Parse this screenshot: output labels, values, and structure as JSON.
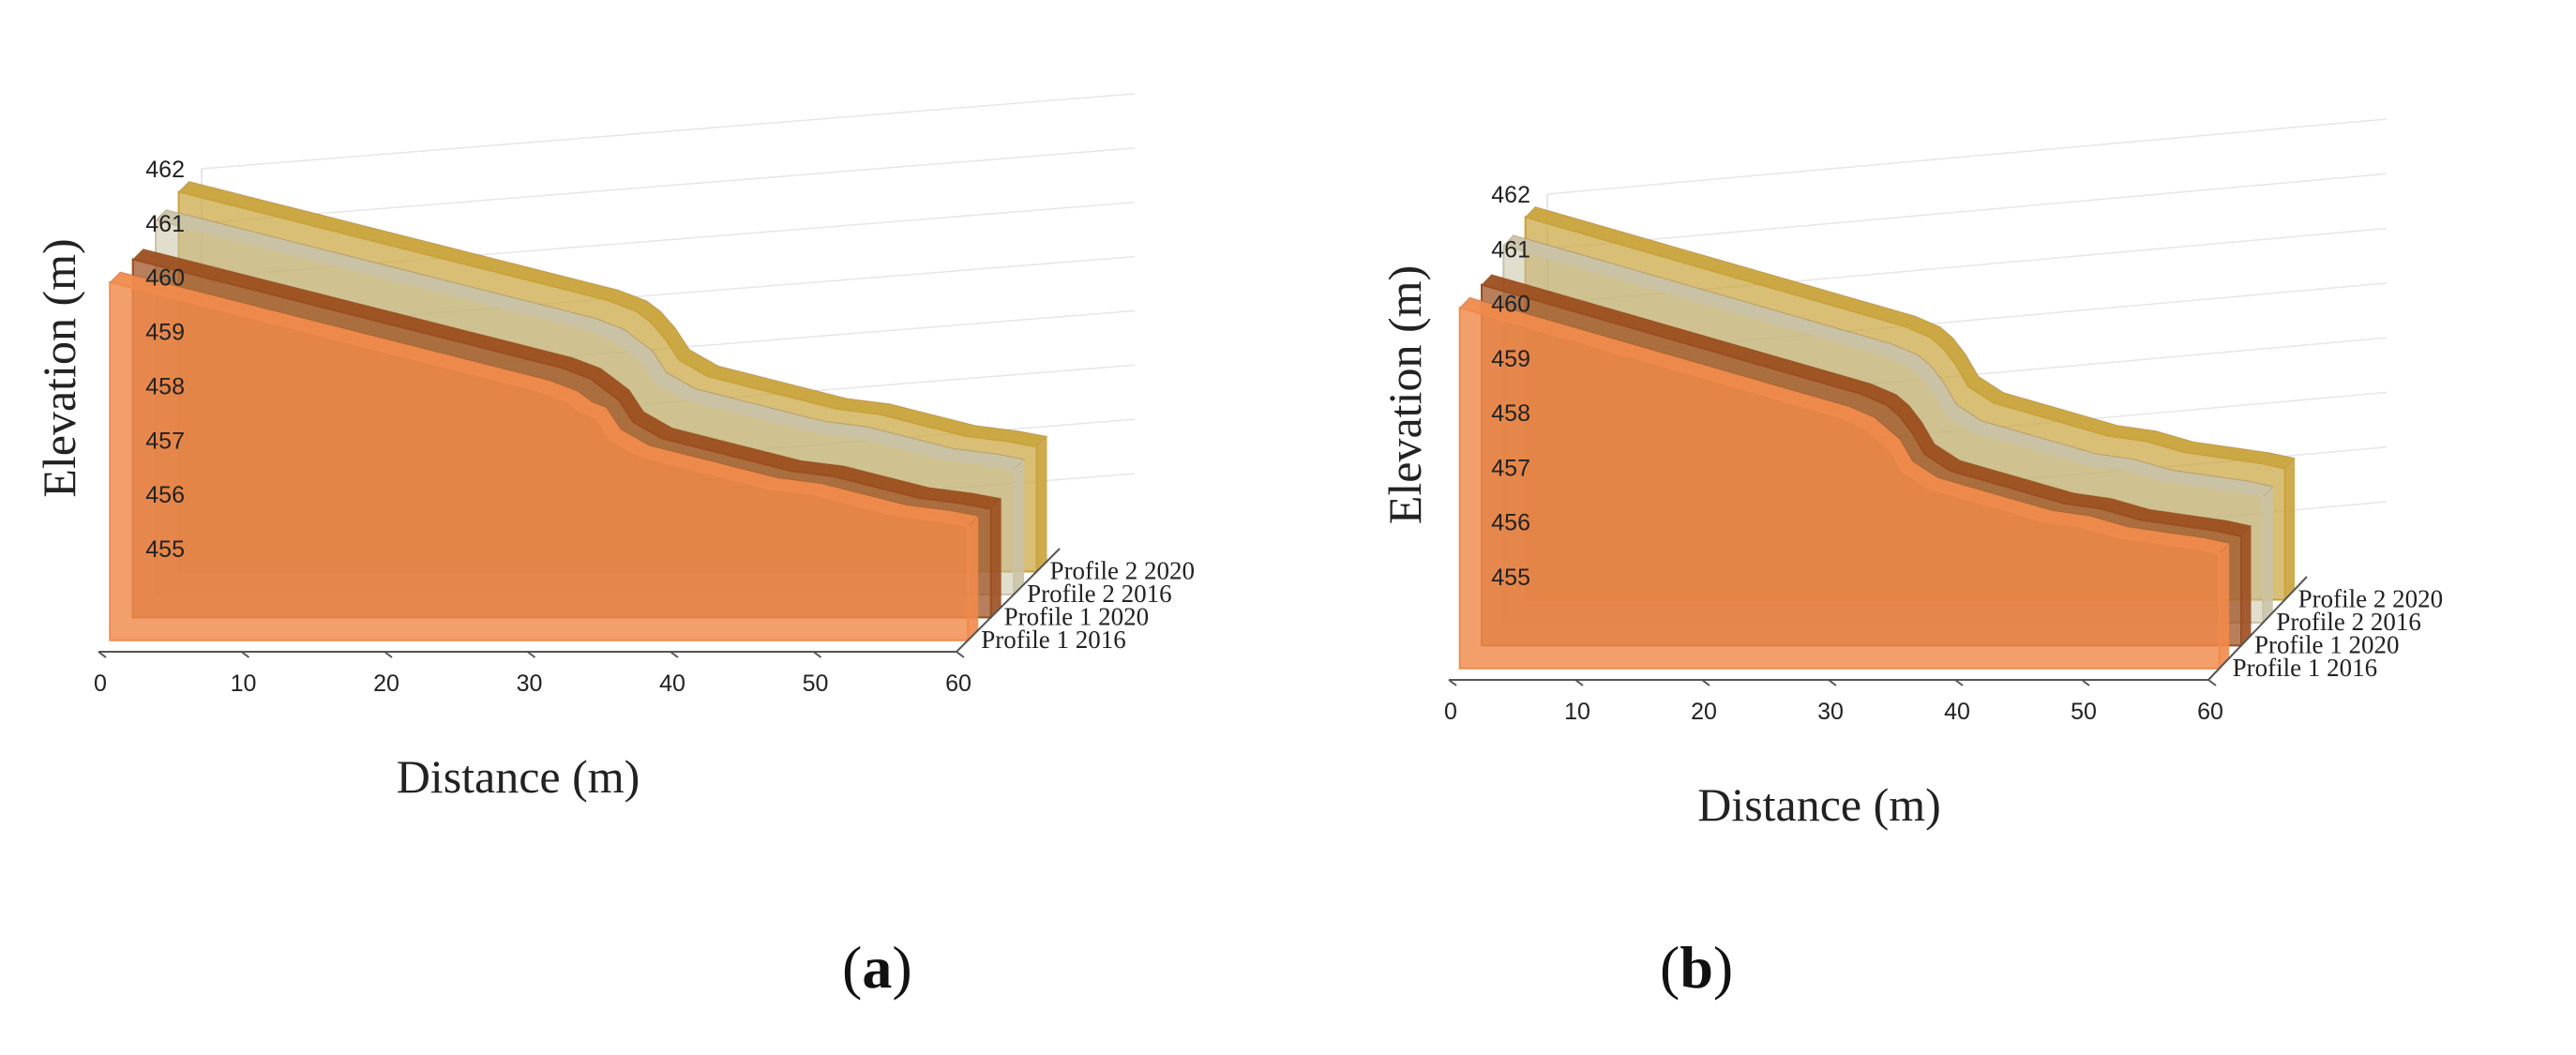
{
  "colors": {
    "profile_1_2016": "#F08A4B",
    "profile_1_2020": "#9C4E1F",
    "profile_2_2016": "#C9C2A6",
    "profile_2_2020": "#C9A33A",
    "grid": "#e6e6e6",
    "axis": "#555555"
  },
  "panels": [
    {
      "label_open": "(",
      "label_letter": "a",
      "label_close": ")"
    },
    {
      "label_open": "(",
      "label_letter": "b",
      "label_close": ")"
    }
  ],
  "chart_data": [
    {
      "type": "area",
      "panel": "a",
      "title": "",
      "xlabel": "Distance (m)",
      "ylabel": "Elevation (m)",
      "xlim": [
        0,
        60
      ],
      "ylim": [
        455,
        462
      ],
      "xticks": [
        "0",
        "10",
        "20",
        "30",
        "40",
        "50",
        "60"
      ],
      "yticks": [
        "455",
        "456",
        "457",
        "458",
        "459",
        "460",
        "461",
        "462"
      ],
      "depth_labels": [
        "Profile 1 2016",
        "Profile 1 2020",
        "Profile 2 2016",
        "Profile 2 2020"
      ],
      "x": [
        0,
        3,
        6,
        9,
        12,
        15,
        18,
        21,
        24,
        27,
        30,
        32,
        33,
        34,
        35,
        37,
        40,
        43,
        46,
        49,
        52,
        55,
        58,
        60
      ],
      "series": [
        {
          "name": "Profile 1 2016",
          "values": [
            461.6,
            461.4,
            461.2,
            461.0,
            460.8,
            460.6,
            460.4,
            460.2,
            460.0,
            459.8,
            459.6,
            459.4,
            459.2,
            459.1,
            458.7,
            458.4,
            458.2,
            458.0,
            457.8,
            457.7,
            457.5,
            457.3,
            457.2,
            457.1
          ]
        },
        {
          "name": "Profile 1 2020",
          "values": [
            461.6,
            461.4,
            461.2,
            461.0,
            460.8,
            460.6,
            460.4,
            460.2,
            460.0,
            459.8,
            459.6,
            459.4,
            459.2,
            459.0,
            458.6,
            458.3,
            458.1,
            457.9,
            457.7,
            457.6,
            457.4,
            457.2,
            457.1,
            457.0
          ]
        },
        {
          "name": "Profile 2 2016",
          "values": [
            461.9,
            461.7,
            461.5,
            461.3,
            461.1,
            460.9,
            460.7,
            460.5,
            460.3,
            460.1,
            459.9,
            459.7,
            459.5,
            459.3,
            458.9,
            458.6,
            458.4,
            458.2,
            458.0,
            457.9,
            457.7,
            457.5,
            457.4,
            457.3
          ]
        },
        {
          "name": "Profile 2 2020",
          "values": [
            462.0,
            461.8,
            461.6,
            461.4,
            461.2,
            461.0,
            460.8,
            460.6,
            460.4,
            460.2,
            460.0,
            459.8,
            459.6,
            459.3,
            458.9,
            458.6,
            458.4,
            458.2,
            458.0,
            457.9,
            457.7,
            457.5,
            457.4,
            457.3
          ]
        }
      ]
    },
    {
      "type": "area",
      "panel": "b",
      "title": "",
      "xlabel": "Distance (m)",
      "ylabel": "Elevation (m)",
      "xlim": [
        0,
        60
      ],
      "ylim": [
        455,
        462
      ],
      "xticks": [
        "0",
        "10",
        "20",
        "30",
        "40",
        "50",
        "60"
      ],
      "yticks": [
        "455",
        "456",
        "457",
        "458",
        "459",
        "460",
        "461",
        "462"
      ],
      "depth_labels": [
        "Profile 1 2016",
        "Profile 1 2020",
        "Profile 2 2016",
        "Profile 2 2020"
      ],
      "x": [
        0,
        3,
        6,
        9,
        12,
        15,
        18,
        21,
        24,
        27,
        30,
        32,
        33,
        34,
        35,
        37,
        40,
        43,
        46,
        49,
        52,
        55,
        58,
        60
      ],
      "series": [
        {
          "name": "Profile 1 2016",
          "values": [
            461.6,
            461.4,
            461.2,
            461.0,
            460.8,
            460.6,
            460.4,
            460.2,
            460.0,
            459.8,
            459.6,
            459.4,
            459.2,
            459.0,
            458.6,
            458.3,
            458.1,
            457.9,
            457.7,
            457.6,
            457.4,
            457.3,
            457.2,
            457.1
          ]
        },
        {
          "name": "Profile 1 2020",
          "values": [
            461.6,
            461.4,
            461.2,
            461.0,
            460.8,
            460.6,
            460.4,
            460.2,
            460.0,
            459.8,
            459.6,
            459.4,
            459.2,
            458.9,
            458.5,
            458.2,
            458.0,
            457.8,
            457.6,
            457.5,
            457.3,
            457.2,
            457.1,
            457.0
          ]
        },
        {
          "name": "Profile 2 2016",
          "values": [
            461.9,
            461.7,
            461.5,
            461.3,
            461.1,
            460.9,
            460.7,
            460.5,
            460.3,
            460.1,
            459.9,
            459.7,
            459.5,
            459.2,
            458.8,
            458.5,
            458.3,
            458.1,
            457.9,
            457.8,
            457.6,
            457.5,
            457.4,
            457.3
          ]
        },
        {
          "name": "Profile 2 2020",
          "values": [
            462.0,
            461.8,
            461.6,
            461.4,
            461.2,
            461.0,
            460.8,
            460.6,
            460.4,
            460.2,
            460.0,
            459.8,
            459.6,
            459.3,
            458.9,
            458.6,
            458.4,
            458.2,
            458.0,
            457.9,
            457.7,
            457.6,
            457.5,
            457.4
          ]
        }
      ]
    }
  ]
}
